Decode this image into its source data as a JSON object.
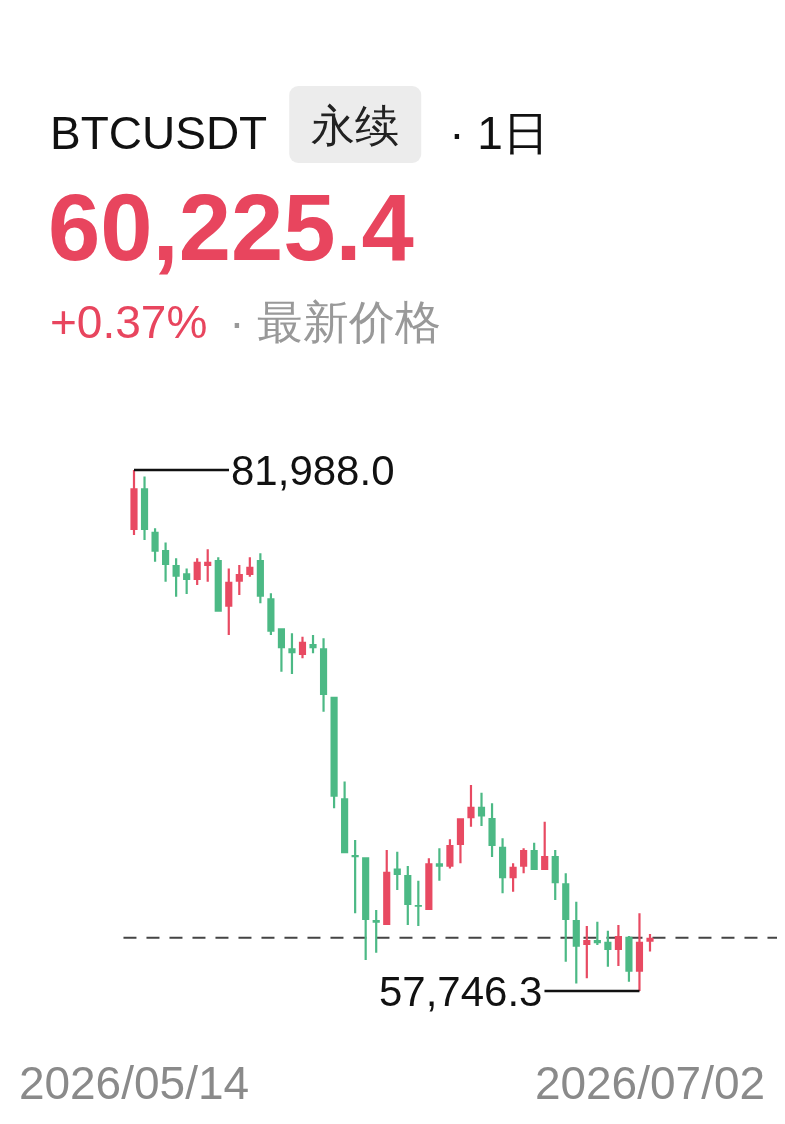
{
  "chart_data": {
    "type": "candlestick",
    "title": "BTCUSDT",
    "annotations": [
      "永续",
      "· 1日",
      "60,225.4",
      "+0.37%",
      "· 最新价格",
      {
        "text": "81,988.0",
        "x": "2026-05-14",
        "y": 81988.0
      },
      {
        "text": "57,746.3",
        "x": "2026-07-01",
        "y": 57746.3
      }
    ],
    "x": [
      "2026-05-14",
      "2026-05-15",
      "2026-05-16",
      "2026-05-17",
      "2026-05-18",
      "2026-05-19",
      "2026-05-20",
      "2026-05-21",
      "2026-05-22",
      "2026-05-23",
      "2026-05-24",
      "2026-05-25",
      "2026-05-26",
      "2026-05-27",
      "2026-05-28",
      "2026-05-29",
      "2026-05-30",
      "2026-05-31",
      "2026-06-01",
      "2026-06-02",
      "2026-06-03",
      "2026-06-04",
      "2026-06-05",
      "2026-06-06",
      "2026-06-07",
      "2026-06-08",
      "2026-06-09",
      "2026-06-10",
      "2026-06-11",
      "2026-06-12",
      "2026-06-13",
      "2026-06-14",
      "2026-06-15",
      "2026-06-16",
      "2026-06-17",
      "2026-06-18",
      "2026-06-19",
      "2026-06-20",
      "2026-06-21",
      "2026-06-22",
      "2026-06-23",
      "2026-06-24",
      "2026-06-25",
      "2026-06-26",
      "2026-06-27",
      "2026-06-28",
      "2026-06-29",
      "2026-06-30",
      "2026-07-01",
      "2026-07-02"
    ],
    "ohlc": [
      [
        79200,
        81988.0,
        78960,
        81140
      ],
      [
        81140,
        81680,
        78730,
        79200
      ],
      [
        79120,
        79280,
        77720,
        78190
      ],
      [
        78270,
        78610,
        76790,
        77570
      ],
      [
        77570,
        77880,
        76090,
        77020
      ],
      [
        77180,
        77410,
        76220,
        76870
      ],
      [
        76870,
        77880,
        76640,
        77720
      ],
      [
        77520,
        78300,
        76790,
        77720
      ],
      [
        77800,
        77930,
        75390,
        75390
      ],
      [
        75630,
        77410,
        74310,
        76790
      ],
      [
        76790,
        77570,
        76170,
        77150
      ],
      [
        77100,
        77930,
        77020,
        77490
      ],
      [
        77800,
        78110,
        75790,
        76090
      ],
      [
        76020,
        76250,
        74310,
        74460
      ],
      [
        74620,
        74620,
        72600,
        73690
      ],
      [
        73690,
        74390,
        72500,
        73460
      ],
      [
        73380,
        74230,
        73230,
        74000
      ],
      [
        73890,
        74310,
        73460,
        73690
      ],
      [
        73690,
        74160,
        70740,
        71520
      ],
      [
        71440,
        71440,
        66250,
        66790
      ],
      [
        66710,
        67490,
        64150,
        64150
      ],
      [
        64070,
        64770,
        61360,
        63970
      ],
      [
        63970,
        63970,
        59190,
        61050
      ],
      [
        61050,
        61510,
        59530,
        60920
      ],
      [
        60820,
        64310,
        60820,
        63300
      ],
      [
        63450,
        64230,
        62450,
        63140
      ],
      [
        63140,
        63560,
        60820,
        61750
      ],
      [
        61750,
        62880,
        60770,
        61670
      ],
      [
        61510,
        63920,
        61510,
        63690
      ],
      [
        63690,
        64390,
        62880,
        63530
      ],
      [
        63530,
        64810,
        63450,
        64540
      ],
      [
        64540,
        65780,
        63690,
        65780
      ],
      [
        65780,
        67330,
        65390,
        66320
      ],
      [
        66320,
        66970,
        65420,
        65860
      ],
      [
        65800,
        66480,
        63980,
        64490
      ],
      [
        64460,
        64850,
        62290,
        62990
      ],
      [
        62990,
        63690,
        62370,
        63530
      ],
      [
        63530,
        64390,
        63220,
        64310
      ],
      [
        64310,
        64650,
        63380,
        63380
      ],
      [
        63380,
        65620,
        63380,
        64030
      ],
      [
        64030,
        64310,
        61980,
        62760
      ],
      [
        62760,
        63220,
        59110,
        61050
      ],
      [
        61050,
        61900,
        58100,
        59810
      ],
      [
        59890,
        60770,
        58340,
        60120
      ],
      [
        60120,
        60970,
        59890,
        59970
      ],
      [
        60040,
        60550,
        58880,
        59650
      ],
      [
        59650,
        60820,
        58910,
        60310
      ],
      [
        60270,
        60310,
        58180,
        58640
      ],
      [
        58640,
        61360,
        57746.3,
        60040
      ],
      [
        60040,
        60400,
        59580,
        60225.4
      ]
    ],
    "colors": [
      "#e84a62",
      "#4cb985",
      "#4cb985",
      "#4cb985",
      "#4cb985",
      "#4cb985",
      "#e84a62",
      "#e84a62",
      "#4cb985",
      "#e84a62",
      "#e84a62",
      "#e84a62",
      "#4cb985",
      "#4cb985",
      "#4cb985",
      "#4cb985",
      "#e84a62",
      "#4cb985",
      "#4cb985",
      "#4cb985",
      "#4cb985",
      "#4cb985",
      "#4cb985",
      "#4cb985",
      "#e84a62",
      "#4cb985",
      "#4cb985",
      "#4cb985",
      "#e84a62",
      "#4cb985",
      "#e84a62",
      "#e84a62",
      "#e84a62",
      "#4cb985",
      "#4cb985",
      "#4cb985",
      "#e84a62",
      "#e84a62",
      "#4cb985",
      "#e84a62",
      "#4cb985",
      "#4cb985",
      "#4cb985",
      "#e84a62",
      "#4cb985",
      "#4cb985",
      "#e84a62",
      "#4cb985",
      "#e84a62",
      "#e84a62"
    ],
    "xlim": [
      "2026-05-14",
      "2026-07-02"
    ],
    "xticks": [
      {
        "value": "2026-05-14",
        "label": "2026/05/14"
      },
      {
        "value": "2026-07-02",
        "label": "2026/07/02"
      }
    ],
    "tick_labels": "x",
    "ref_lines": [
      {
        "axis": "y",
        "value": 60225.4,
        "line_style": "dashed",
        "color": "#444444"
      }
    ]
  }
}
